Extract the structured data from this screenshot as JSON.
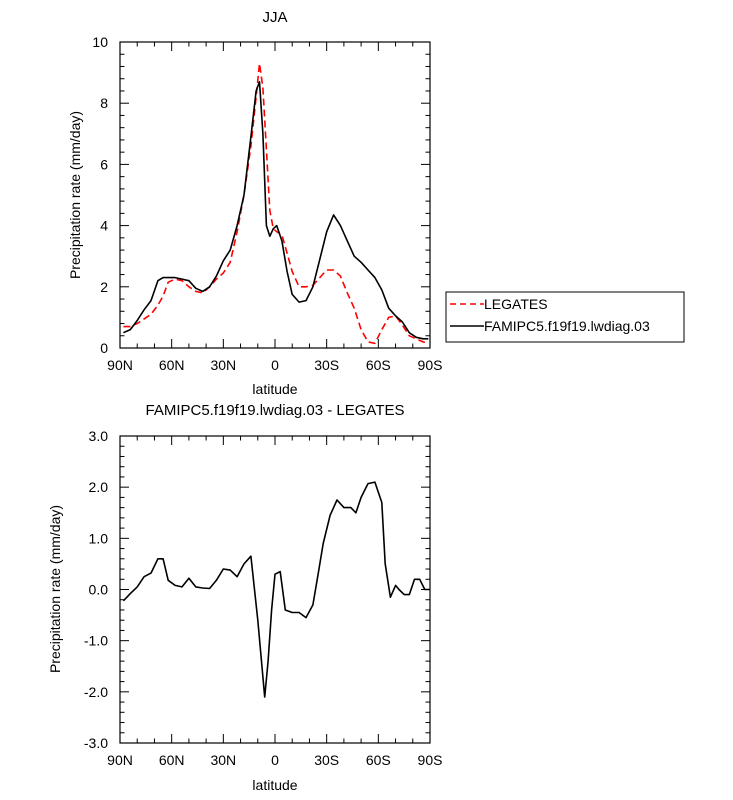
{
  "chart_data": [
    {
      "type": "line",
      "title": "JJA",
      "xlabel": "latitude",
      "ylabel": "Precipitation rate (mm/day)",
      "xlim": [
        90,
        -90
      ],
      "ylim": [
        0,
        10
      ],
      "xticks": [
        {
          "value": 90,
          "label": "90N"
        },
        {
          "value": 60,
          "label": "60N"
        },
        {
          "value": 30,
          "label": "30N"
        },
        {
          "value": 0,
          "label": "0"
        },
        {
          "value": -30,
          "label": "30S"
        },
        {
          "value": -60,
          "label": "60S"
        },
        {
          "value": -90,
          "label": "90S"
        }
      ],
      "yticks": [
        {
          "value": 0,
          "label": "0"
        },
        {
          "value": 2,
          "label": "2"
        },
        {
          "value": 4,
          "label": "4"
        },
        {
          "value": 6,
          "label": "6"
        },
        {
          "value": 8,
          "label": "8"
        },
        {
          "value": 10,
          "label": "10"
        }
      ],
      "legend": "right",
      "series": [
        {
          "name": "LEGATES",
          "color": "#ff0000",
          "dash": "dashed",
          "x": [
            88,
            84,
            80,
            76,
            72,
            68,
            65,
            62,
            58,
            54,
            50,
            46,
            42,
            38,
            34,
            30,
            26,
            22,
            18,
            14,
            11,
            9,
            7,
            5,
            3,
            1,
            -1,
            -4,
            -7,
            -10,
            -14,
            -18,
            -22,
            -26,
            -30,
            -34,
            -38,
            -42,
            -46,
            -50,
            -54,
            -58,
            -62,
            -66,
            -70,
            -74,
            -78,
            -82,
            -86,
            -89
          ],
          "y": [
            0.7,
            0.7,
            0.8,
            0.95,
            1.1,
            1.4,
            1.7,
            2.15,
            2.25,
            2.2,
            2.0,
            1.85,
            1.8,
            2.0,
            2.25,
            2.45,
            2.8,
            3.8,
            5.0,
            6.6,
            8.2,
            9.3,
            8.5,
            6.5,
            4.5,
            3.9,
            3.8,
            3.7,
            3.1,
            2.5,
            2.0,
            2.0,
            2.05,
            2.3,
            2.55,
            2.55,
            2.35,
            1.8,
            1.3,
            0.6,
            0.2,
            0.15,
            0.6,
            1.0,
            1.05,
            0.75,
            0.4,
            0.3,
            0.2,
            0.15
          ]
        },
        {
          "name": "FAMIPC5.f19f19.lwdiag.03",
          "color": "#000000",
          "dash": "solid",
          "x": [
            88,
            84,
            80,
            76,
            72,
            68,
            65,
            62,
            58,
            54,
            50,
            46,
            42,
            38,
            34,
            30,
            26,
            22,
            18,
            14,
            11,
            9,
            7,
            5,
            3,
            1,
            -1,
            -4,
            -7,
            -10,
            -14,
            -18,
            -22,
            -26,
            -30,
            -34,
            -38,
            -42,
            -46,
            -50,
            -54,
            -58,
            -62,
            -66,
            -70,
            -74,
            -78,
            -82,
            -86,
            -89
          ],
          "y": [
            0.5,
            0.6,
            0.9,
            1.25,
            1.55,
            2.2,
            2.3,
            2.3,
            2.3,
            2.25,
            2.2,
            1.95,
            1.85,
            2.0,
            2.35,
            2.85,
            3.2,
            4.0,
            5.0,
            6.9,
            8.4,
            8.7,
            7.0,
            4.0,
            3.65,
            3.9,
            4.0,
            3.5,
            2.5,
            1.75,
            1.5,
            1.55,
            2.0,
            2.9,
            3.8,
            4.35,
            4.0,
            3.5,
            3.0,
            2.8,
            2.55,
            2.3,
            1.9,
            1.3,
            1.05,
            0.85,
            0.5,
            0.35,
            0.3,
            0.3
          ]
        }
      ]
    },
    {
      "type": "line",
      "title": "FAMIPC5.f19f19.lwdiag.03 - LEGATES",
      "xlabel": "latitude",
      "ylabel": "Precipitation rate (mm/day)",
      "xlim": [
        90,
        -90
      ],
      "ylim": [
        -3,
        3
      ],
      "xticks": [
        {
          "value": 90,
          "label": "90N"
        },
        {
          "value": 60,
          "label": "60N"
        },
        {
          "value": 30,
          "label": "30N"
        },
        {
          "value": 0,
          "label": "0"
        },
        {
          "value": -30,
          "label": "30S"
        },
        {
          "value": -60,
          "label": "60S"
        },
        {
          "value": -90,
          "label": "90S"
        }
      ],
      "yticks": [
        {
          "value": -3,
          "label": "-3.0"
        },
        {
          "value": -2,
          "label": "-2.0"
        },
        {
          "value": -1,
          "label": "-1.0"
        },
        {
          "value": 0,
          "label": "0.0"
        },
        {
          "value": 1,
          "label": "1.0"
        },
        {
          "value": 2,
          "label": "2.0"
        },
        {
          "value": 3,
          "label": "3.0"
        }
      ],
      "series": [
        {
          "color": "#000000",
          "dash": "solid",
          "x": [
            88,
            84,
            80,
            76,
            72,
            68,
            65,
            62,
            58,
            54,
            50,
            46,
            42,
            38,
            34,
            30,
            26,
            22,
            18,
            14,
            10,
            6,
            4,
            2,
            0,
            -3,
            -6,
            -10,
            -14,
            -18,
            -22,
            -25,
            -28,
            -32,
            -36,
            -40,
            -44,
            -47,
            -50,
            -54,
            -58,
            -62,
            -64,
            -67,
            -70,
            -72,
            -75,
            -78,
            -81,
            -84,
            -87,
            -90
          ],
          "y": [
            -0.22,
            -0.08,
            0.05,
            0.25,
            0.32,
            0.6,
            0.6,
            0.18,
            0.08,
            0.05,
            0.22,
            0.05,
            0.03,
            0.02,
            0.18,
            0.4,
            0.38,
            0.25,
            0.5,
            0.65,
            -0.6,
            -2.1,
            -1.4,
            -0.4,
            0.3,
            0.35,
            -0.4,
            -0.45,
            -0.45,
            -0.55,
            -0.3,
            0.3,
            0.9,
            1.45,
            1.75,
            1.6,
            1.6,
            1.5,
            1.8,
            2.07,
            2.1,
            1.7,
            0.5,
            -0.15,
            0.08,
            0.0,
            -0.1,
            -0.1,
            0.2,
            0.2,
            0.0,
            0.0
          ]
        }
      ]
    }
  ]
}
